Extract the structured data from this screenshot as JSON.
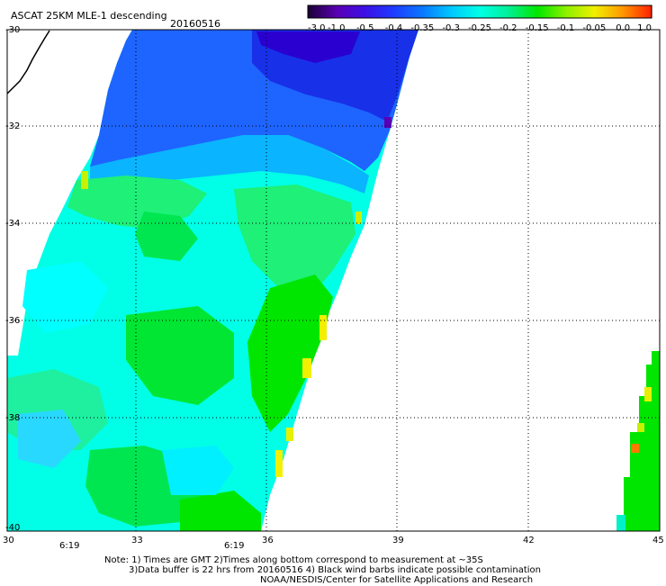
{
  "header": {
    "product": "ASCAT 25KM MLE-1 descending",
    "date": "20160516"
  },
  "colorbar": {
    "tick_labels": [
      "-3.0",
      "-1.0",
      "-0.5",
      "-0.4",
      "-0.35",
      "-0.3",
      "-0.25",
      "-0.2",
      "-0.15",
      "-0.1",
      "-0.05",
      "0.0",
      "1.0"
    ],
    "colors": [
      "#1a0033",
      "#5a00b4",
      "#3c10e6",
      "#1e3cff",
      "#0a78ff",
      "#00c8ff",
      "#00ffe6",
      "#00f096",
      "#00e600",
      "#8cf000",
      "#f0f000",
      "#ff9600",
      "#ff1e00"
    ]
  },
  "map": {
    "lat_labels": [
      "-30",
      "-32",
      "-34",
      "-36",
      "-38",
      "-40"
    ],
    "lon_labels": [
      "30",
      "33",
      "36",
      "39",
      "42",
      "45"
    ],
    "time_labels": [
      "6:19",
      "6:19"
    ],
    "time_label_color": "#cc2200"
  },
  "notes": {
    "line1": "Note: 1) Times are GMT 2)Times along bottom correspond to measurement at ~35S",
    "line2": "3)Data buffer is 22 hrs from 20160516 4) Black wind barbs indicate possible contamination",
    "line3": "NOAA/NESDIS/Center for Satellite Applications and Research"
  }
}
